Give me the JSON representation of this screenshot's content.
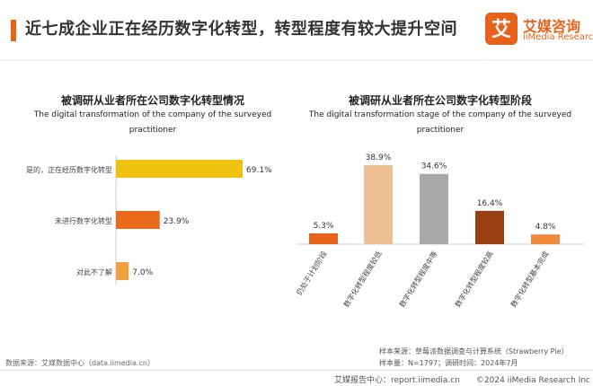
{
  "header": {
    "title": "近七成企业正在经历数字化转型，转型程度有较大提升空间",
    "logo_cn": "艾媒咨询",
    "logo_en": "iiMedia Research",
    "logo_glyph": "艾",
    "accent_color": "#e8631a"
  },
  "chart_data": [
    {
      "type": "bar",
      "orientation": "horizontal",
      "title": "被调研从业者所在公司数字化转型情况",
      "subtitle": "The digital transformation of the company of the surveyed practitioner",
      "categories": [
        "是的，正在经历数字化转型",
        "未进行数字化转型",
        "对此不了解"
      ],
      "values": [
        69.1,
        23.9,
        7.0
      ],
      "value_labels": [
        "69.1%",
        "23.9%",
        "7.0%"
      ],
      "colors": [
        "#efc30f",
        "#e86a1a",
        "#f0a040"
      ],
      "unit": "%"
    },
    {
      "type": "bar",
      "orientation": "vertical",
      "title": "被调研从业者所在公司数字化转型阶段",
      "subtitle": "The digital transformation stage of the company of the surveyed practitioner",
      "categories": [
        "仍处于计划阶段",
        "数字化转型程度较低",
        "数字化转型程度中等",
        "数字化转型程度较高",
        "数字化转型基本完成"
      ],
      "values": [
        5.3,
        38.9,
        34.6,
        16.4,
        4.8
      ],
      "value_labels": [
        "5.3%",
        "38.9%",
        "34.6%",
        "16.4%",
        "4.8%"
      ],
      "colors": [
        "#e8631a",
        "#efbf94",
        "#a8a8a8",
        "#9a3f12",
        "#f08a3a"
      ],
      "unit": "%"
    }
  ],
  "footer": {
    "source": "数据来源：艾媒数据中心（data.iimedia.cn）",
    "sample_source": "样本来源：草莓派数据调查与计算系统（Strawberry Pie）",
    "sample_size": "样本量：N=1797；调研时间：2024年7月",
    "bottom": "艾媒报告中心：report.iimedia.cn　　©2024  iiMedia Research Inc"
  }
}
